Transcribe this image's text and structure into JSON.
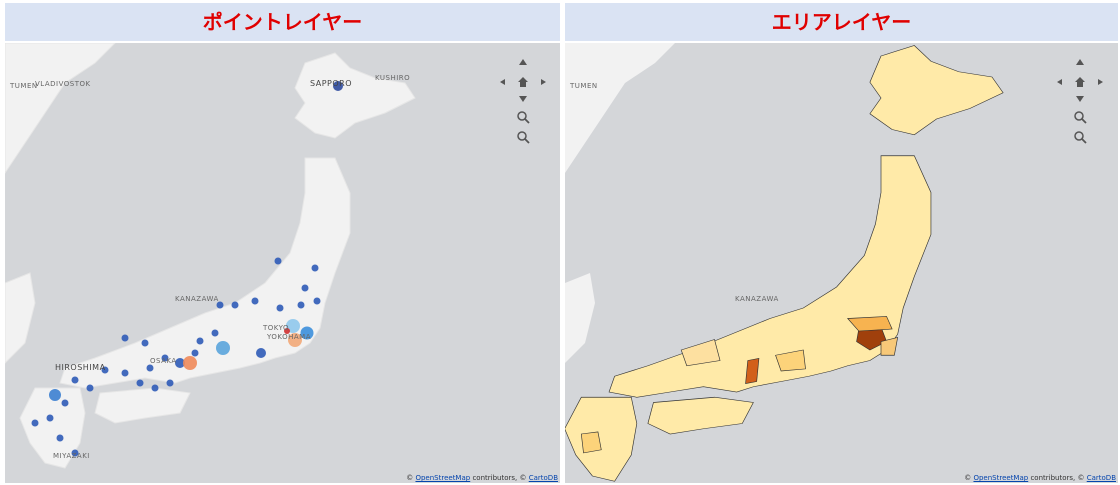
{
  "panels": [
    {
      "title": "ポイントレイヤー",
      "place_labels": [
        "VLADIVOSTOK",
        "TUMEN",
        "SAPPORO",
        "KUSHIRO",
        "KANAZAWA",
        "TOKYO",
        "YOKOHAMA",
        "OSAKA",
        "HIROSHIMA",
        "MIYAZAKI"
      ],
      "attribution": {
        "prefix": "©",
        "osm": "OpenStreetMap",
        "middle": "contributors, ©",
        "carto": "CartoDB"
      }
    },
    {
      "title": "エリアレイヤー",
      "place_labels": [
        "TUMEN",
        "KANAZAWA"
      ],
      "attribution": {
        "prefix": "©",
        "osm": "OpenStreetMap",
        "middle": "contributors, ©",
        "carto": "CartoDB"
      }
    }
  ]
}
